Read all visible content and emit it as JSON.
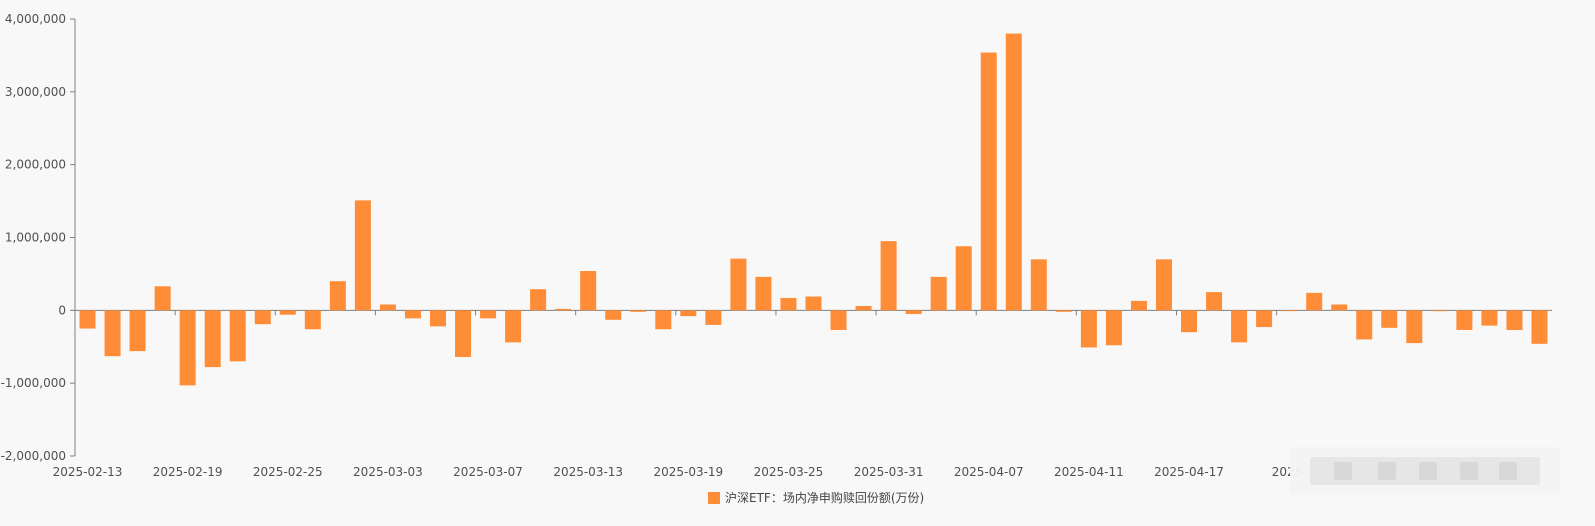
{
  "chart_data": {
    "type": "bar",
    "series": [
      {
        "name": "沪深ETF：场内净申购赎回份额(万份)",
        "color": "#ff8c37",
        "values": [
          -250000,
          -630000,
          -560000,
          330000,
          -1030000,
          -780000,
          -700000,
          -190000,
          -60000,
          -260000,
          400000,
          1510000,
          80000,
          -110000,
          -220000,
          -640000,
          -110000,
          -440000,
          290000,
          20000,
          540000,
          -130000,
          -20000,
          -260000,
          -80000,
          -200000,
          710000,
          460000,
          170000,
          190000,
          -270000,
          60000,
          950000,
          -50000,
          460000,
          880000,
          3540000,
          3800000,
          700000,
          -20000,
          -510000,
          -480000,
          130000,
          700000,
          -300000,
          250000,
          -440000,
          -230000,
          0,
          240000,
          80000,
          -400000,
          -240000,
          -450000,
          0,
          -270000,
          -210000,
          -270000,
          -460000
        ]
      }
    ],
    "x_tick_labels": [
      "2025-02-13",
      "2025-02-19",
      "2025-02-25",
      "2025-03-03",
      "2025-03-07",
      "2025-03-13",
      "2025-03-19",
      "2025-03-25",
      "2025-03-31",
      "2025-04-07",
      "2025-04-11",
      "2025-04-17",
      "2025-"
    ],
    "y_tick_labels": [
      "4,000,000",
      "3,000,000",
      "2,000,000",
      "1,000,000",
      "0",
      "-1,000,000",
      "-2,000,000"
    ],
    "y_ticks": [
      4000000,
      3000000,
      2000000,
      1000000,
      0,
      -1000000,
      -2000000
    ],
    "ylim": [
      -2000000,
      4000000
    ],
    "bar_count": 59,
    "x_tick_every": 4,
    "grid": false,
    "legend_position": "bottom-center"
  }
}
